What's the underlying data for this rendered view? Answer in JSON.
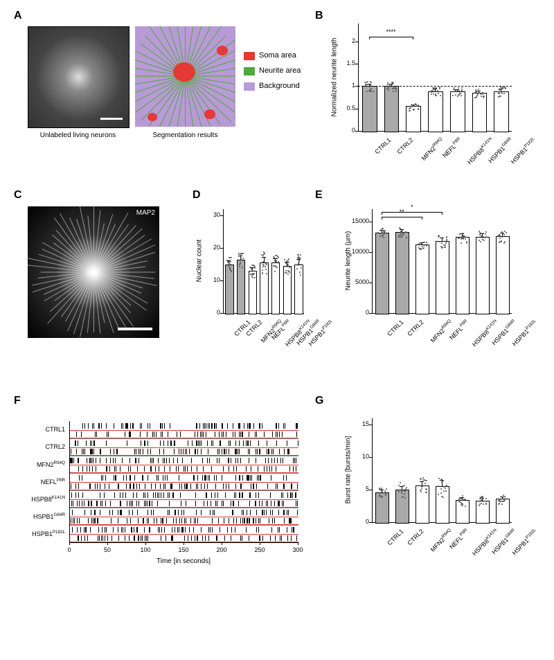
{
  "panels": {
    "A": "A",
    "B": "B",
    "C": "C",
    "D": "D",
    "E": "E",
    "F": "F",
    "G": "G"
  },
  "panelA": {
    "left_caption": "Unlabeled living neurons",
    "right_caption": "Segmentation results",
    "legend": [
      {
        "color": "#e53935",
        "label": "Soma area"
      },
      {
        "color": "#4eaa3a",
        "label": "Neurite area"
      },
      {
        "color": "#b89ad6",
        "label": "Background"
      }
    ]
  },
  "panelC": {
    "label": "MAP2"
  },
  "categories_full": [
    "CTRL1",
    "CTRL2",
    "MFN2R94Q",
    "NEFLP8R",
    "HSPB8K141N",
    "HSPB1G84R",
    "HSPB1P182L"
  ],
  "categories_html": [
    "CTRL1",
    "CTRL2",
    "MFN2<sup>R94Q</sup>",
    "NEFL<sup>P8R</sup>",
    "HSPB8<sup>K141N</sup>",
    "HSPB1<sup>G84R</sup>",
    "HSPB1<sup>P182L</sup>"
  ],
  "chartB": {
    "type": "bar",
    "ylabel": "Normalized neurite length",
    "ylim": [
      0,
      2.4
    ],
    "yticks": [
      0,
      0.5,
      1.0,
      1.5,
      2.0
    ],
    "values": [
      1.0,
      1.0,
      0.55,
      0.88,
      0.88,
      0.85,
      0.88
    ],
    "err": [
      0.06,
      0.06,
      0.04,
      0.06,
      0.05,
      0.05,
      0.07
    ],
    "refline": 1.0,
    "bar_colors": [
      "ctrl",
      "ctrl",
      "mut",
      "mut",
      "mut",
      "mut",
      "mut"
    ],
    "sig": [
      {
        "from": 0,
        "to": 2,
        "label": "****",
        "y": 2.1
      }
    ]
  },
  "chartD": {
    "type": "bar",
    "ylabel": "Nuclear count",
    "ylim": [
      0,
      32
    ],
    "yticks": [
      0,
      10,
      20,
      30
    ],
    "values": [
      15,
      16.5,
      13,
      15.5,
      15.5,
      14.5,
      15
    ],
    "err": [
      1.2,
      1.2,
      1.0,
      1.8,
      1.3,
      1.3,
      1.6
    ],
    "bar_colors": [
      "ctrl",
      "ctrl",
      "mut",
      "mut",
      "mut",
      "mut",
      "mut"
    ]
  },
  "chartE": {
    "type": "bar",
    "ylabel": "Neurite length (µm)",
    "ylim": [
      0,
      17000
    ],
    "yticks": [
      0,
      5000,
      10000,
      15000
    ],
    "values": [
      13200,
      13300,
      11200,
      11800,
      12500,
      12500,
      12600
    ],
    "err": [
      400,
      400,
      400,
      500,
      550,
      550,
      550
    ],
    "bar_colors": [
      "ctrl",
      "ctrl",
      "mut",
      "mut",
      "mut",
      "mut",
      "mut"
    ],
    "sig": [
      {
        "from": 0,
        "to": 2,
        "label": "**",
        "y": 15800
      },
      {
        "from": 0,
        "to": 3,
        "label": "*",
        "y": 16600
      }
    ]
  },
  "chartG": {
    "type": "bar",
    "ylabel": "Burst rate [bursts/min]",
    "ylim": [
      0,
      16
    ],
    "yticks": [
      0,
      5,
      10,
      15
    ],
    "values": [
      4.6,
      5.0,
      5.7,
      5.6,
      3.4,
      3.3,
      3.6
    ],
    "err": [
      0.4,
      0.6,
      0.6,
      0.9,
      0.4,
      0.4,
      0.4
    ],
    "bar_colors": [
      "ctrl",
      "ctrl",
      "mut",
      "mut",
      "mut",
      "mut",
      "mut"
    ]
  },
  "panelF": {
    "xlabel": "Time [in seconds]",
    "xlim": [
      0,
      300
    ],
    "xticks": [
      0,
      50,
      100,
      150,
      200,
      250,
      300
    ],
    "rows": [
      "CTRL1",
      "CTRL2",
      "MFN2R94Q",
      "NEFLP8R",
      "HSPB8K141N",
      "HSPB1G84R",
      "HSPB1P182L"
    ],
    "rows_html": [
      "CTRL1",
      "CTRL2",
      "MFN2<sup>R94Q</sup>",
      "NEFL<sup>P8R</sup>",
      "HSPB8<sup>K141N</sup>",
      "HSPB1<sup>G84R</sup>",
      "HSPB1<sup>P182L</sup>"
    ]
  },
  "colors": {
    "ctrl_bar": "#a9a9a9",
    "mut_bar": "#ffffff",
    "border": "#000000",
    "soma": "#e53935",
    "neurite": "#4eaa3a",
    "background_seg": "#b89ad6",
    "grid": "#000000"
  },
  "fonts": {
    "panel_label_pt": 16,
    "axis_label_pt": 10,
    "tick_pt": 9
  }
}
